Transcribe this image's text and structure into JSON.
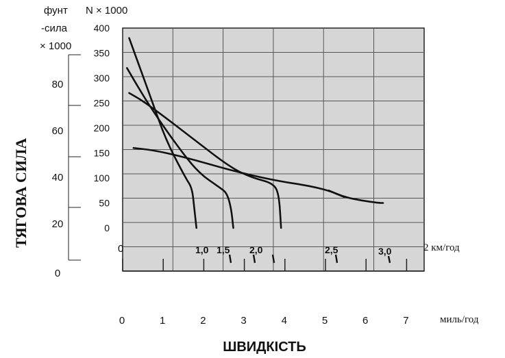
{
  "chart_data": {
    "type": "line",
    "ylabel": "ТЯГОВА СИЛА",
    "xlabel": "ШВИДКІСТЬ",
    "left_axis": {
      "unit_line1": "фунт",
      "unit_line2": "-сила",
      "unit_line3": "× 1000",
      "ticks": [
        "0",
        "20",
        "40",
        "60",
        "80"
      ]
    },
    "right_axis": {
      "unit": "N × 1000",
      "ticks": [
        "0",
        "50",
        "100",
        "150",
        "200",
        "250",
        "300",
        "350",
        "400"
      ]
    },
    "x_axis_kmh": {
      "unit": "2 км/год",
      "ticks": [
        "0"
      ],
      "range": [
        0,
        12
      ]
    },
    "x_axis_mph": {
      "unit": "миль/год",
      "ticks": [
        "0",
        "1",
        "2",
        "3",
        "4",
        "5",
        "6",
        "7"
      ]
    },
    "curve_labels": [
      "1,0",
      "1,5",
      "2,0",
      "2,5",
      "3,0"
    ],
    "ylim_N_thousands": [
      0,
      400
    ],
    "series": [
      {
        "label": "1,0",
        "points": [
          [
            0.3,
            380
          ],
          [
            0.8,
            320
          ],
          [
            1.3,
            260
          ],
          [
            2.0,
            175
          ],
          [
            2.9,
            100
          ],
          [
            3.2,
            80
          ],
          [
            3.3,
            40
          ],
          [
            3.4,
            0
          ]
        ]
      },
      {
        "label": "1,5",
        "points": [
          [
            0.2,
            320
          ],
          [
            0.6,
            290
          ],
          [
            1.3,
            240
          ],
          [
            2.5,
            165
          ],
          [
            3.5,
            110
          ],
          [
            4.5,
            80
          ],
          [
            4.8,
            70
          ],
          [
            5.0,
            40
          ],
          [
            5.1,
            0
          ]
        ]
      },
      {
        "label": "2,0",
        "points": [
          [
            0.3,
            270
          ],
          [
            0.9,
            255
          ],
          [
            2.0,
            220
          ],
          [
            3.2,
            180
          ],
          [
            5.0,
            120
          ],
          [
            6.0,
            100
          ],
          [
            6.9,
            90
          ],
          [
            7.2,
            70
          ],
          [
            7.3,
            0
          ]
        ]
      },
      {
        "label": "2,5",
        "points": [
          [
            0.5,
            160
          ],
          [
            1.5,
            155
          ],
          [
            3.0,
            140
          ],
          [
            5.0,
            115
          ],
          [
            7.0,
            95
          ],
          [
            8.5,
            85
          ],
          [
            9.5,
            75
          ],
          [
            10.2,
            62
          ]
        ]
      },
      {
        "label": "3,0",
        "points": [
          [
            9.5,
            75
          ],
          [
            10.2,
            62
          ],
          [
            11.0,
            55
          ],
          [
            11.8,
            50
          ],
          [
            12.0,
            50
          ]
        ]
      }
    ]
  }
}
